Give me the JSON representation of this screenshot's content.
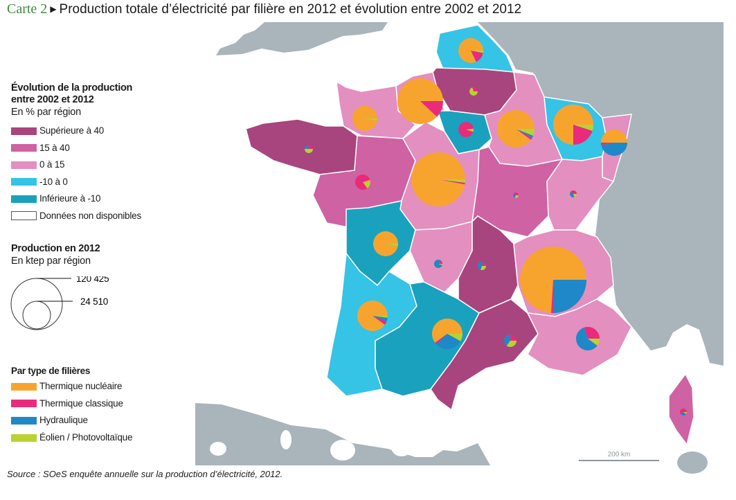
{
  "title": {
    "label": "Carte 2",
    "text": "Production totale d’électricité par filière en 2012 et évolution entre 2002 et 2012"
  },
  "legend_evolution": {
    "heading": "Évolution de la production entre 2002 et 2012",
    "subheading": "En % par région",
    "classes": [
      {
        "label": "Supérieure à 40",
        "color": "#a8457e"
      },
      {
        "label": "15 à 40",
        "color": "#cf62a3"
      },
      {
        "label": "0 à 15",
        "color": "#e38fbf"
      },
      {
        "label": "-10 à 0",
        "color": "#35c3e6"
      },
      {
        "label": "Inférieure à -10",
        "color": "#1aa1bd"
      },
      {
        "label": "Données non disponibles",
        "color": "#ffffff"
      }
    ]
  },
  "legend_production": {
    "heading": "Production en 2012",
    "subheading": "En ktep par région",
    "reference_values": [
      "120 425",
      "24 510"
    ]
  },
  "legend_filieres": {
    "heading": "Par type de  filières",
    "items": [
      {
        "label": "Thermique nucléaire",
        "color": "#f7a42f"
      },
      {
        "label": "Thermique classique",
        "color": "#ea2a7a"
      },
      {
        "label": "Hydraulique",
        "color": "#1e88c9"
      },
      {
        "label": "Éolien / Photovoltaïque",
        "color": "#b9d232"
      }
    ]
  },
  "scale_label": "200 km",
  "source": "Source : SOeS enquête annuelle sur la production d’électricité, 2012.",
  "chart_data": {
    "type": "map-pie",
    "share_order": [
      "nucleaire",
      "classique",
      "hydraulique",
      "eolien_pv"
    ],
    "regions": {
      "nord-pas-de-calais": {
        "class": 3,
        "production_ktep": 16900,
        "shares": [
          0.82,
          0.15,
          0,
          0.03
        ]
      },
      "picardie": {
        "class": 0,
        "production_ktep": 1900,
        "shares": [
          0,
          0.3,
          0,
          0.7
        ]
      },
      "haute-normandie": {
        "class": 2,
        "production_ktep": 56900,
        "shares": [
          0.88,
          0.12,
          0,
          0
        ]
      },
      "basse-normandie": {
        "class": 2,
        "production_ktep": 16900,
        "shares": [
          0.97,
          0,
          0,
          0.03
        ]
      },
      "bretagne": {
        "class": 0,
        "production_ktep": 1900,
        "shares": [
          0,
          0.3,
          0.2,
          0.5
        ]
      },
      "ile-de-france": {
        "class": 4,
        "production_ktep": 6300,
        "shares": [
          0.02,
          0.93,
          0,
          0.05
        ]
      },
      "champagne-ardenne": {
        "class": 2,
        "production_ktep": 38100,
        "shares": [
          0.9,
          0.02,
          0.02,
          0.06
        ]
      },
      "lorraine": {
        "class": 3,
        "production_ktep": 44000,
        "shares": [
          0.75,
          0.2,
          0,
          0.05
        ]
      },
      "alsace": {
        "class": 2,
        "production_ktep": 18900,
        "shares": [
          0.5,
          0.03,
          0.47,
          0
        ]
      },
      "pays-de-la-loire": {
        "class": 1,
        "production_ktep": 6300,
        "shares": [
          0.05,
          0.8,
          0,
          0.15
        ]
      },
      "centre": {
        "class": 2,
        "production_ktep": 79500,
        "shares": [
          0.97,
          0.01,
          0,
          0.02
        ]
      },
      "bourgogne": {
        "class": 1,
        "production_ktep": 800,
        "shares": [
          0,
          0.4,
          0.3,
          0.3
        ]
      },
      "franche-comte": {
        "class": 2,
        "production_ktep": 1300,
        "shares": [
          0,
          0.4,
          0.4,
          0.2
        ]
      },
      "poitou-charentes": {
        "class": 4,
        "production_ktep": 16900,
        "shares": [
          0.97,
          0,
          0,
          0.03
        ]
      },
      "limousin": {
        "class": 2,
        "production_ktep": 1900,
        "shares": [
          0,
          0.15,
          0.8,
          0.05
        ]
      },
      "auvergne": {
        "class": 0,
        "production_ktep": 1900,
        "shares": [
          0,
          0.2,
          0.5,
          0.3
        ]
      },
      "rhone-alpes": {
        "class": 2,
        "production_ktep": 120425,
        "shares": [
          0.74,
          0.01,
          0.25,
          0
        ]
      },
      "aquitaine": {
        "class": 3,
        "production_ktep": 25300,
        "shares": [
          0.9,
          0.04,
          0.04,
          0.02
        ]
      },
      "midi-pyrenees": {
        "class": 4,
        "production_ktep": 25300,
        "shares": [
          0.6,
          0.02,
          0.3,
          0.08
        ]
      },
      "languedoc-roussillon": {
        "class": 0,
        "production_ktep": 4200,
        "shares": [
          0,
          0.25,
          0.4,
          0.35
        ]
      },
      "provence-alpes-cote-d-azur": {
        "class": 2,
        "production_ktep": 15100,
        "shares": [
          0,
          0.3,
          0.6,
          0.1
        ]
      },
      "corse": {
        "class": 1,
        "production_ktep": 1300,
        "shares": [
          0,
          0.6,
          0.3,
          0.1
        ]
      }
    }
  }
}
